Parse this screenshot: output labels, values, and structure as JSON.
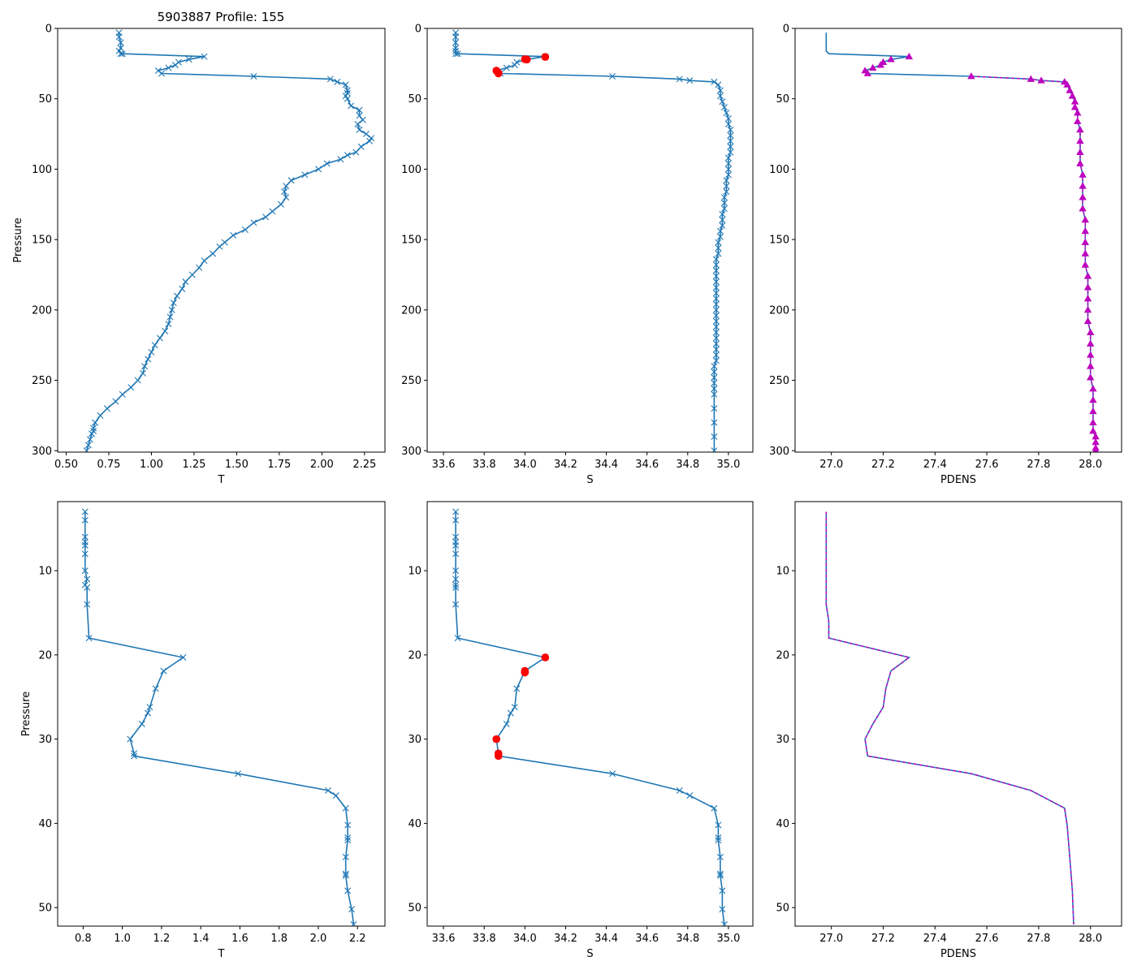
{
  "figure": {
    "title": "5903887 Profile: 155"
  },
  "colors": {
    "line": "#1f77b4",
    "flag": "#ff0000",
    "pdens_marker": "#bf00bf"
  },
  "chart_data": [
    {
      "id": "t-full",
      "type": "line",
      "xlabel": "T",
      "ylabel": "Pressure",
      "title": "5903887 Profile: 155",
      "xlim": [
        0.45,
        2.37
      ],
      "ylim": [
        301,
        0
      ],
      "invert_y": true,
      "xticks": [
        0.5,
        0.75,
        1.0,
        1.25,
        1.5,
        1.75,
        2.0,
        2.25
      ],
      "xticklabels": [
        "0.50",
        "0.75",
        "1.00",
        "1.25",
        "1.50",
        "1.75",
        "2.00",
        "2.25"
      ],
      "yticks": [
        0,
        50,
        100,
        150,
        200,
        250,
        300
      ],
      "yticklabels": [
        "0",
        "50",
        "100",
        "150",
        "200",
        "250",
        "300"
      ],
      "marker": "x",
      "series": [
        {
          "name": "T",
          "x": [
            0.81,
            0.81,
            0.82,
            0.82,
            0.81,
            0.82,
            0.83,
            1.31,
            1.22,
            1.16,
            1.14,
            1.1,
            1.04,
            1.06,
            1.6,
            2.05,
            2.09,
            2.14,
            2.15,
            2.15,
            2.14,
            2.15,
            2.17,
            2.22,
            2.22,
            2.24,
            2.21,
            2.22,
            2.26,
            2.29,
            2.28,
            2.23,
            2.2,
            2.15,
            2.11,
            2.03,
            1.98,
            1.9,
            1.82,
            1.79,
            1.78,
            1.79,
            1.76,
            1.71,
            1.67,
            1.6,
            1.55,
            1.48,
            1.43,
            1.4,
            1.36,
            1.31,
            1.28,
            1.24,
            1.2,
            1.18,
            1.15,
            1.13,
            1.12,
            1.11,
            1.1,
            1.08,
            1.05,
            1.02,
            1.0,
            0.98,
            0.96,
            0.95,
            0.92,
            0.88,
            0.83,
            0.79,
            0.74,
            0.7,
            0.67,
            0.66,
            0.66,
            0.65,
            0.64,
            0.63,
            0.62
          ],
          "y": [
            3,
            6,
            10,
            14,
            16,
            18,
            18,
            20,
            22,
            24,
            26,
            28,
            30,
            32,
            34,
            36,
            38,
            40,
            44,
            46,
            48,
            50,
            55,
            58,
            62,
            65,
            68,
            72,
            75,
            78,
            80,
            84,
            88,
            90,
            93,
            96,
            100,
            104,
            108,
            112,
            116,
            120,
            125,
            130,
            134,
            138,
            143,
            147,
            152,
            155,
            160,
            165,
            170,
            175,
            180,
            185,
            190,
            195,
            200,
            205,
            210,
            215,
            220,
            225,
            230,
            235,
            240,
            245,
            250,
            255,
            260,
            265,
            270,
            275,
            280,
            284,
            286,
            288,
            292,
            296,
            300
          ]
        }
      ]
    },
    {
      "id": "s-full",
      "type": "line",
      "xlabel": "S",
      "ylabel": "",
      "xlim": [
        33.52,
        35.12
      ],
      "ylim": [
        301,
        0
      ],
      "invert_y": true,
      "xticks": [
        33.6,
        33.8,
        34.0,
        34.2,
        34.4,
        34.6,
        34.8,
        35.0
      ],
      "xticklabels": [
        "33.6",
        "33.8",
        "34.0",
        "34.2",
        "34.4",
        "34.6",
        "34.8",
        "35.0"
      ],
      "yticks": [
        0,
        50,
        100,
        150,
        200,
        250,
        300
      ],
      "yticklabels": [
        "0",
        "50",
        "100",
        "150",
        "200",
        "250",
        "300"
      ],
      "marker": "x",
      "series": [
        {
          "name": "S",
          "x": [
            33.66,
            33.66,
            33.66,
            33.66,
            33.66,
            33.66,
            33.67,
            34.1,
            34.01,
            33.96,
            33.95,
            33.91,
            33.86,
            33.88,
            34.43,
            34.76,
            34.81,
            34.93,
            34.95,
            34.96,
            34.96,
            34.97,
            34.98,
            34.99,
            35.0,
            35.0,
            35.01,
            35.01,
            35.01,
            35.01,
            35.01,
            35.0,
            35.0,
            35.0,
            35.0,
            34.99,
            34.99,
            34.99,
            34.98,
            34.98,
            34.98,
            34.97,
            34.97,
            34.97,
            34.96,
            34.96,
            34.95,
            34.95,
            34.95,
            34.94,
            34.94,
            34.94,
            34.94,
            34.94,
            34.94,
            34.94,
            34.94,
            34.94,
            34.94,
            34.94,
            34.94,
            34.94,
            34.94,
            34.94,
            34.94,
            34.94,
            34.94,
            34.94,
            34.93,
            34.93,
            34.93,
            34.93,
            34.93,
            34.93,
            34.93,
            34.93,
            34.93,
            34.93
          ],
          "y": [
            3,
            6,
            10,
            14,
            16,
            18,
            18,
            20,
            22,
            24,
            26,
            28,
            30,
            32,
            34,
            36,
            37,
            38,
            40,
            44,
            48,
            52,
            56,
            60,
            64,
            68,
            72,
            76,
            80,
            84,
            88,
            92,
            96,
            100,
            104,
            108,
            112,
            116,
            120,
            124,
            128,
            132,
            136,
            140,
            144,
            148,
            152,
            156,
            160,
            164,
            168,
            172,
            176,
            180,
            184,
            188,
            192,
            196,
            200,
            204,
            208,
            212,
            216,
            220,
            224,
            228,
            232,
            236,
            240,
            244,
            248,
            252,
            256,
            260,
            270,
            280,
            290,
            300
          ]
        }
      ],
      "flagged": {
        "name": "flagged",
        "x": [
          34.1,
          34.0,
          34.01,
          33.86,
          33.87,
          33.87
        ],
        "y": [
          20.3,
          21.9,
          22.1,
          30.0,
          31.7,
          32.0
        ]
      }
    },
    {
      "id": "pdens-full",
      "type": "line",
      "xlabel": "PDENS",
      "ylabel": "",
      "xlim": [
        26.86,
        28.12
      ],
      "ylim": [
        301,
        0
      ],
      "invert_y": true,
      "xticks": [
        27.0,
        27.2,
        27.4,
        27.6,
        27.8,
        28.0
      ],
      "xticklabels": [
        "27.0",
        "27.2",
        "27.4",
        "27.6",
        "27.8",
        "28.0"
      ],
      "yticks": [
        0,
        50,
        100,
        150,
        200,
        250,
        300
      ],
      "yticklabels": [
        "0",
        "50",
        "100",
        "150",
        "200",
        "250",
        "300"
      ],
      "series": [
        {
          "name": "PDENS",
          "x": [
            26.98,
            26.98,
            26.98,
            26.98,
            26.98,
            26.99,
            26.99,
            27.3,
            27.23,
            27.2,
            27.19,
            27.16,
            27.13,
            27.14,
            27.54,
            27.77,
            27.81,
            27.9,
            27.91,
            27.92,
            27.93,
            27.94,
            27.94,
            27.95,
            27.95,
            27.96,
            27.96,
            27.96,
            27.96,
            27.97,
            27.97,
            27.97,
            27.97,
            27.98,
            27.98,
            27.98,
            27.98,
            27.98,
            27.99,
            27.99,
            27.99,
            27.99,
            27.99,
            28.0,
            28.0,
            28.0,
            28.0,
            28.0,
            28.01,
            28.01,
            28.01,
            28.01,
            28.01,
            28.02,
            28.02,
            28.02,
            28.02
          ],
          "y": [
            3,
            6,
            10,
            14,
            16,
            18,
            18,
            20,
            22,
            24,
            26,
            28,
            30,
            32,
            34,
            36,
            37,
            38,
            40,
            44,
            48,
            52,
            56,
            60,
            66,
            72,
            80,
            88,
            96,
            104,
            112,
            120,
            128,
            136,
            144,
            152,
            160,
            168,
            176,
            184,
            192,
            200,
            208,
            216,
            224,
            232,
            240,
            248,
            256,
            264,
            272,
            280,
            286,
            290,
            294,
            298,
            300
          ]
        }
      ],
      "marker_series": {
        "name": "PDENS markers",
        "marker": "triangle"
      }
    },
    {
      "id": "t-zoom",
      "type": "line",
      "xlabel": "T",
      "ylabel": "Pressure",
      "xlim": [
        0.67,
        2.34
      ],
      "ylim": [
        52.2,
        1.8
      ],
      "invert_y": true,
      "xticks": [
        0.8,
        1.0,
        1.2,
        1.4,
        1.6,
        1.8,
        2.0,
        2.2
      ],
      "xticklabels": [
        "0.8",
        "1.0",
        "1.2",
        "1.4",
        "1.6",
        "1.8",
        "2.0",
        "2.2"
      ],
      "yticks": [
        10,
        20,
        30,
        40,
        50
      ],
      "yticklabels": [
        "10",
        "20",
        "30",
        "40",
        "50"
      ],
      "marker": "x",
      "series": [
        {
          "name": "T",
          "x": [
            0.81,
            0.81,
            0.81,
            0.81,
            0.81,
            0.81,
            0.81,
            0.82,
            0.81,
            0.82,
            0.82,
            0.83,
            1.31,
            1.21,
            1.17,
            1.14,
            1.13,
            1.1,
            1.04,
            1.06,
            1.06,
            1.59,
            2.05,
            2.09,
            2.14,
            2.15,
            2.15,
            2.15,
            2.14,
            2.14,
            2.14,
            2.15,
            2.17,
            2.18
          ],
          "y": [
            3,
            4,
            6,
            6.6,
            7,
            8,
            10,
            11,
            11.7,
            12,
            14,
            18,
            20.3,
            21.9,
            24,
            26.2,
            26.9,
            28.2,
            30,
            31.7,
            32,
            34.1,
            36.1,
            36.7,
            38.2,
            40.2,
            41.7,
            42,
            44,
            46,
            46.2,
            48,
            50.2,
            52
          ]
        }
      ]
    },
    {
      "id": "s-zoom",
      "type": "line",
      "xlabel": "S",
      "ylabel": "",
      "xlim": [
        33.52,
        35.12
      ],
      "ylim": [
        52.2,
        1.8
      ],
      "invert_y": true,
      "xticks": [
        33.6,
        33.8,
        34.0,
        34.2,
        34.4,
        34.6,
        34.8,
        35.0
      ],
      "xticklabels": [
        "33.6",
        "33.8",
        "34.0",
        "34.2",
        "34.4",
        "34.6",
        "34.8",
        "35.0"
      ],
      "yticks": [
        10,
        20,
        30,
        40,
        50
      ],
      "yticklabels": [
        "10",
        "20",
        "30",
        "40",
        "50"
      ],
      "marker": "x",
      "series": [
        {
          "name": "S",
          "x": [
            33.66,
            33.66,
            33.66,
            33.66,
            33.66,
            33.66,
            33.66,
            33.66,
            33.66,
            33.66,
            33.66,
            33.67,
            34.1,
            34.0,
            33.96,
            33.95,
            33.93,
            33.91,
            33.86,
            33.87,
            33.87,
            34.43,
            34.76,
            34.81,
            34.93,
            34.95,
            34.95,
            34.95,
            34.96,
            34.96,
            34.96,
            34.97,
            34.97,
            34.98
          ],
          "y": [
            3,
            4,
            6,
            6.6,
            7,
            8,
            10,
            11,
            11.7,
            12,
            14,
            18,
            20.3,
            21.9,
            24,
            26.2,
            26.9,
            28.2,
            30,
            31.7,
            32,
            34.1,
            36.1,
            36.7,
            38.2,
            40.2,
            41.7,
            42,
            44,
            46,
            46.2,
            48,
            50.2,
            52
          ]
        }
      ],
      "flagged": {
        "name": "flagged",
        "x": [
          34.1,
          34.0,
          34.0,
          33.86,
          33.87,
          33.87
        ],
        "y": [
          20.3,
          21.9,
          22.1,
          30.0,
          31.7,
          32.0
        ]
      }
    },
    {
      "id": "pdens-zoom",
      "type": "line",
      "xlabel": "PDENS",
      "ylabel": "",
      "xlim": [
        26.86,
        28.12
      ],
      "ylim": [
        52.2,
        1.8
      ],
      "invert_y": true,
      "xticks": [
        27.0,
        27.2,
        27.4,
        27.6,
        27.8,
        28.0
      ],
      "xticklabels": [
        "27.0",
        "27.2",
        "27.4",
        "27.6",
        "27.8",
        "28.0"
      ],
      "yticks": [
        10,
        20,
        30,
        40,
        50
      ],
      "yticklabels": [
        "10",
        "20",
        "30",
        "40",
        "50"
      ],
      "series": [
        {
          "name": "PDENS",
          "x": [
            26.98,
            26.98,
            26.98,
            26.98,
            26.99,
            26.99,
            27.3,
            27.23,
            27.21,
            27.2,
            27.16,
            27.13,
            27.14,
            27.54,
            27.77,
            27.9,
            27.91,
            27.92,
            27.93,
            27.935
          ],
          "y": [
            3,
            6,
            10,
            14,
            16,
            18,
            20.3,
            21.9,
            24,
            26.2,
            28.2,
            30,
            32,
            34.1,
            36.1,
            38.2,
            40.2,
            44,
            48,
            52
          ]
        }
      ],
      "dashed_overlay": {
        "name": "PDENS (magenta dashed)",
        "x": [
          26.98,
          26.98,
          26.98,
          26.98,
          26.99,
          26.99,
          27.3,
          27.23,
          27.21,
          27.2,
          27.16,
          27.13,
          27.14,
          27.54,
          27.77,
          27.9,
          27.91,
          27.92,
          27.93,
          27.935
        ],
        "y": [
          3,
          6,
          10,
          14,
          16,
          18,
          20.3,
          21.9,
          24,
          26.2,
          28.2,
          30,
          32,
          34.1,
          36.1,
          38.2,
          40.2,
          44,
          48,
          52
        ]
      }
    }
  ]
}
